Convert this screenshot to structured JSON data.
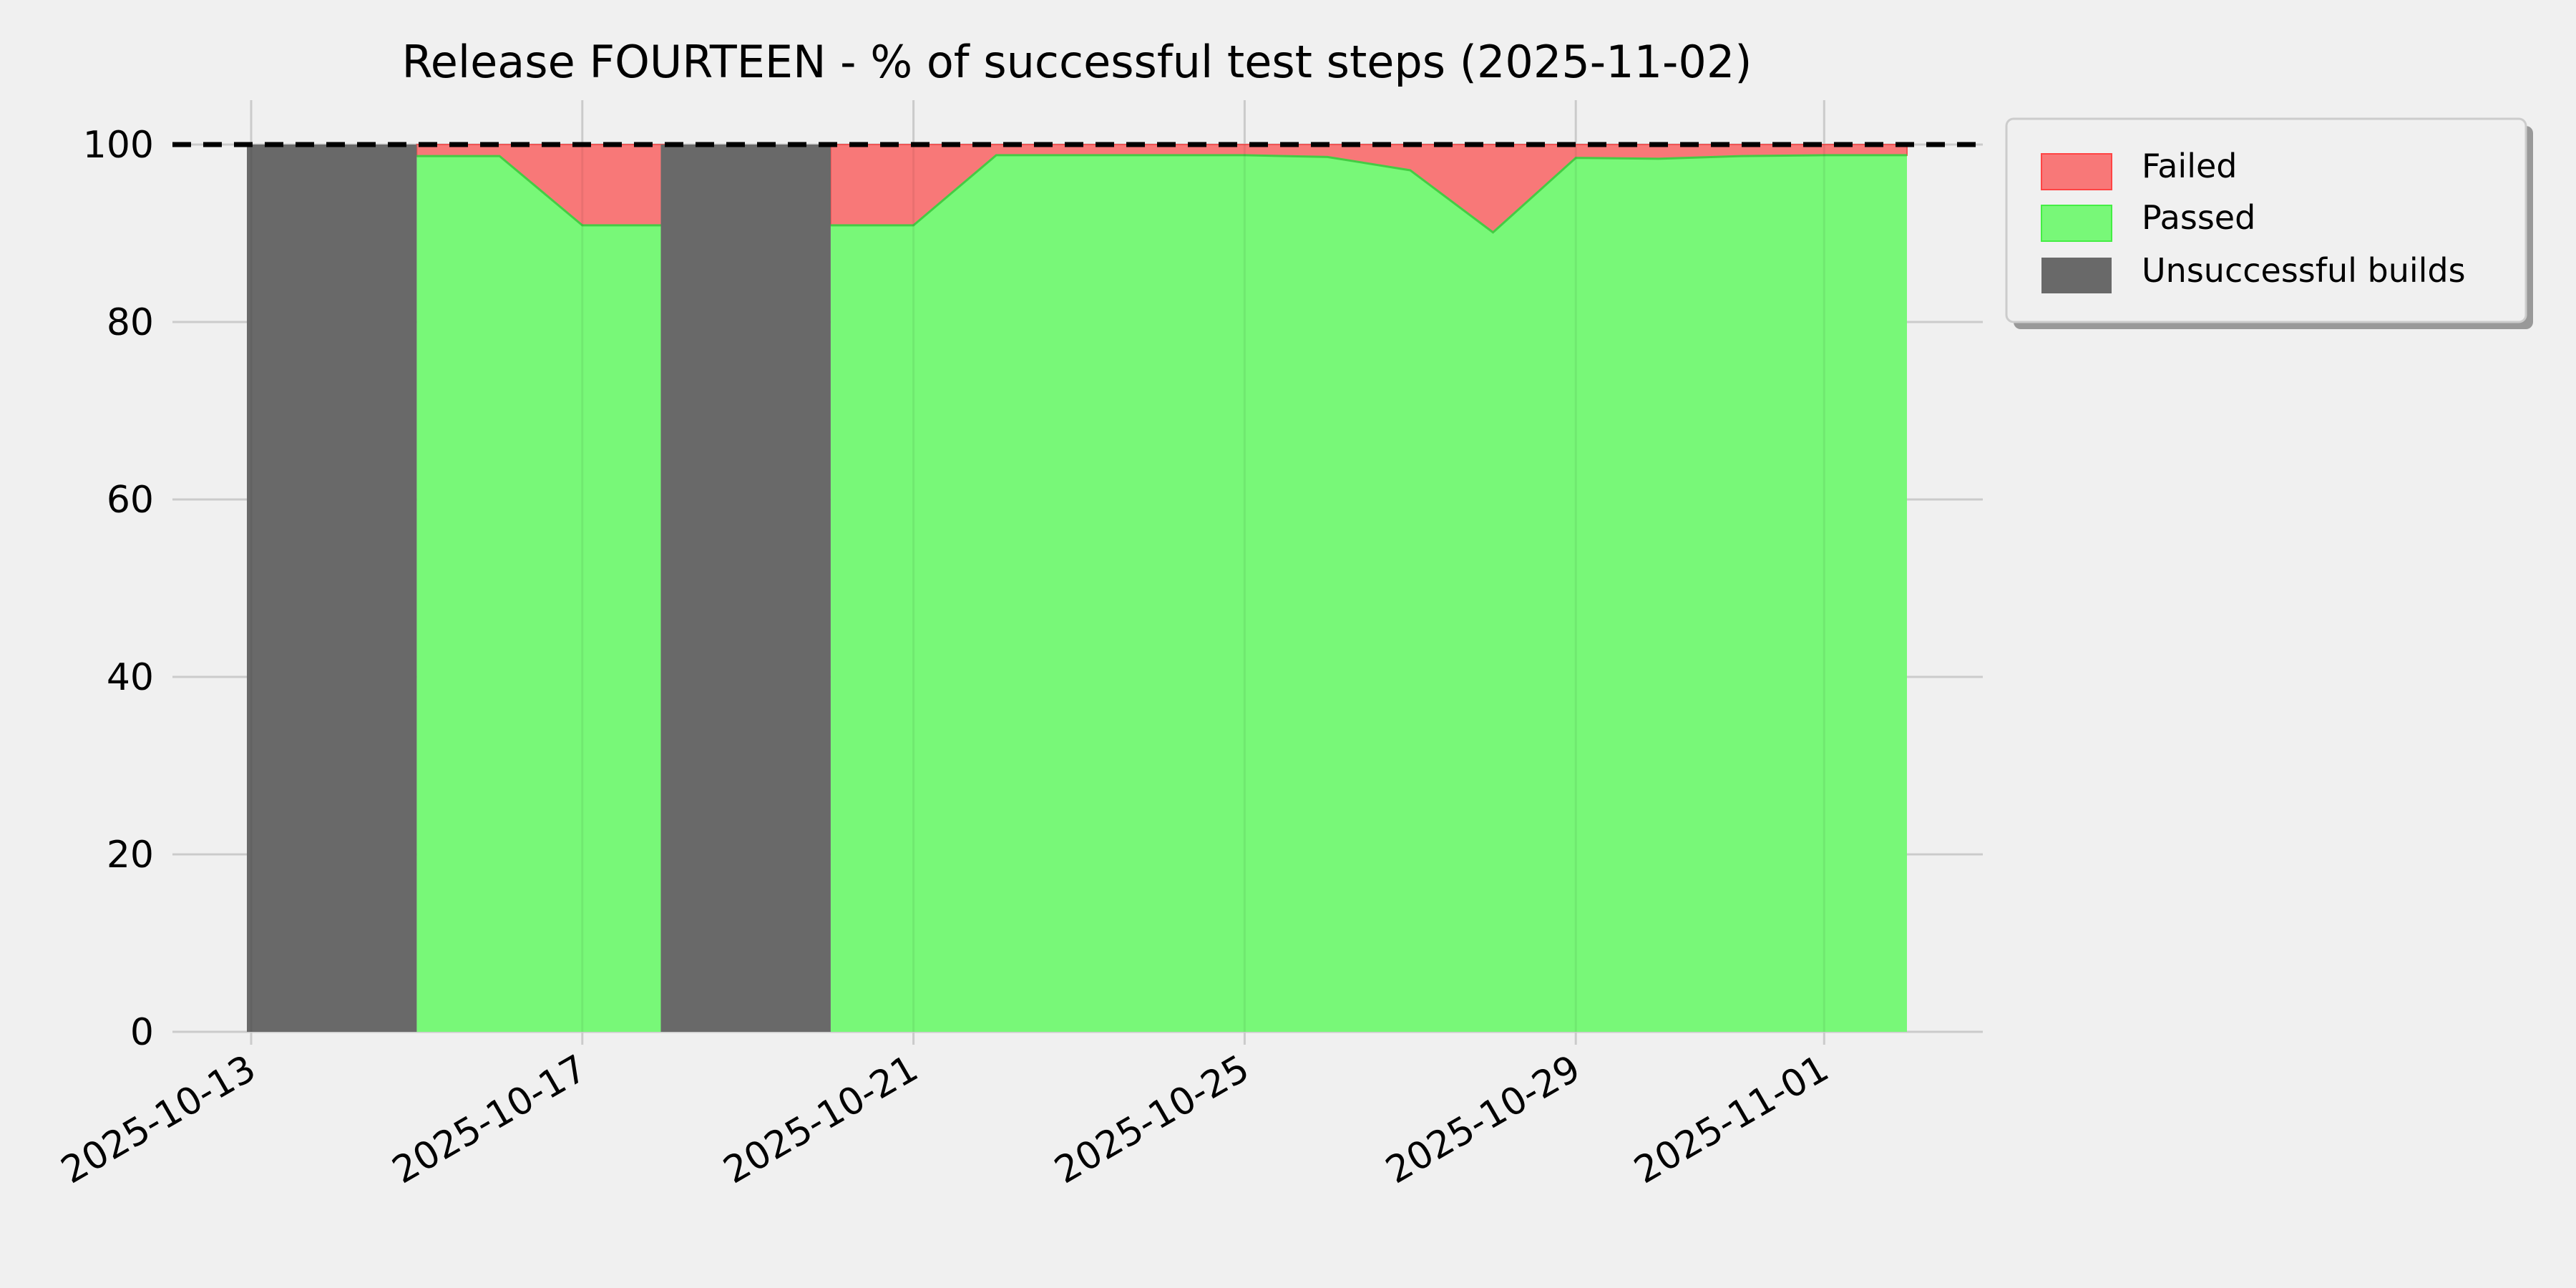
{
  "chart_data": {
    "type": "area",
    "title": "Release FOURTEEN - % of successful test steps (2025-11-02)",
    "xlabel": "",
    "ylabel": "",
    "ylim": [
      0,
      100
    ],
    "xlim": [
      "2025-10-12T08:00",
      "2025-11-03T04:00"
    ],
    "x_ticks": [
      "2025-10-13",
      "2025-10-17",
      "2025-10-21",
      "2025-10-25",
      "2025-10-29",
      "2025-11-01"
    ],
    "y_ticks": [
      0,
      20,
      40,
      60,
      80,
      100
    ],
    "grid": true,
    "reference_line": {
      "y": 100,
      "style": "dashed",
      "color": "#000000"
    },
    "legend": {
      "placement": "outside-top-right",
      "entries": [
        "Failed",
        "Passed",
        "Unsuccessful builds"
      ]
    },
    "colors": {
      "Failed": "#f87878",
      "Passed": "#78f878",
      "Unsuccessful builds": "#696969",
      "background": "#f0f0f0"
    },
    "series": [
      {
        "name": "Passed",
        "segments": [
          {
            "x": [
              "2025-10-15",
              "2025-10-16",
              "2025-10-17",
              "2025-10-18"
            ],
            "y": [
              98.7,
              98.7,
              90.9,
              90.9
            ]
          },
          {
            "x": [
              "2025-10-20",
              "2025-10-21",
              "2025-10-22",
              "2025-10-23",
              "2025-10-24",
              "2025-10-25",
              "2025-10-26",
              "2025-10-27",
              "2025-10-28",
              "2025-10-29",
              "2025-10-30",
              "2025-10-31",
              "2025-11-01",
              "2025-11-02"
            ],
            "y": [
              90.9,
              90.9,
              98.8,
              98.8,
              98.8,
              98.8,
              98.6,
              97.1,
              90.1,
              98.5,
              98.4,
              98.7,
              98.8,
              98.8
            ]
          }
        ]
      },
      {
        "name": "Failed",
        "note_y_top": 100
      },
      {
        "name": "Unsuccessful builds",
        "ranges": [
          [
            "2025-10-13",
            "2025-10-15"
          ],
          [
            "2025-10-18",
            "2025-10-20"
          ]
        ],
        "value": 100
      }
    ]
  }
}
